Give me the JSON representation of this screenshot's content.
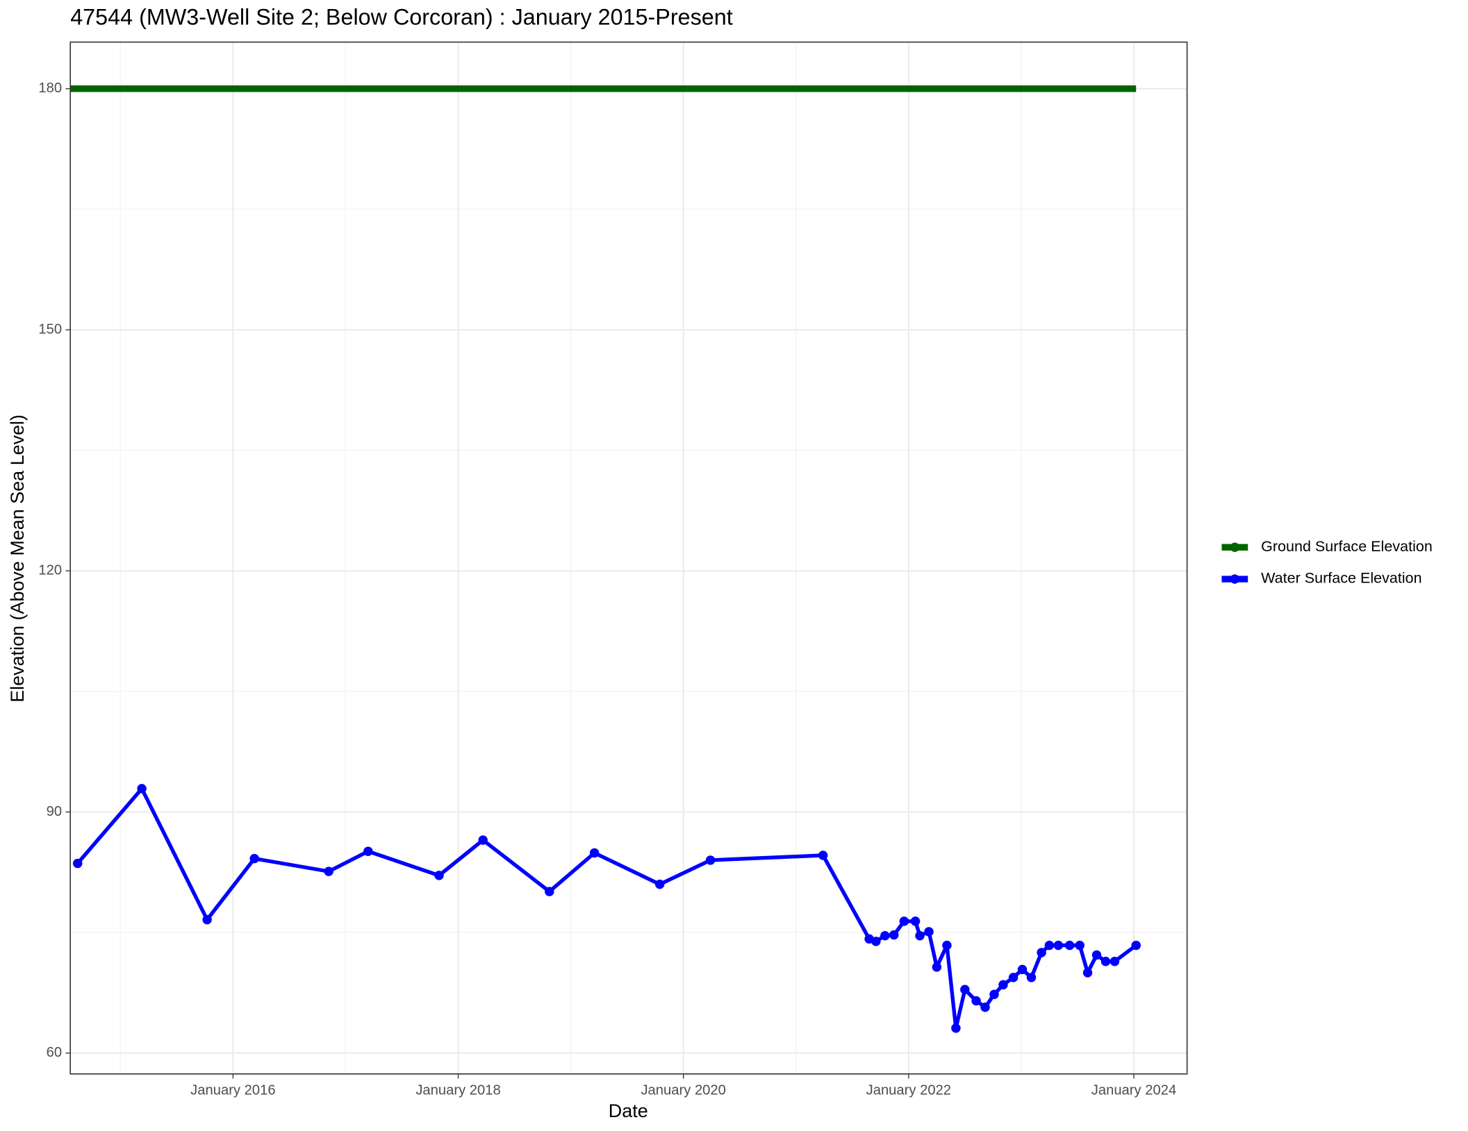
{
  "chart_data": {
    "type": "line",
    "title": "47544 (MW3-Well Site 2; Below Corcoran) : January 2015-Present",
    "x_label": "Date",
    "y_label": "Elevation (Above Mean Sea Level)",
    "xlim": [
      2014.555,
      2024.473
    ],
    "ylim": [
      57.4,
      185.8
    ],
    "xticks": [
      {
        "value": 2016,
        "label": "January 2016"
      },
      {
        "value": 2018,
        "label": "January 2018"
      },
      {
        "value": 2020,
        "label": "January 2020"
      },
      {
        "value": 2022,
        "label": "January 2022"
      },
      {
        "value": 2024,
        "label": "January 2024"
      }
    ],
    "yticks": [
      60,
      90,
      120,
      150,
      180
    ],
    "grid": true,
    "legend": "right",
    "series": [
      {
        "name": "Ground Surface Elevation",
        "color": "#006400",
        "markers": false,
        "x": [
          2014.555,
          2024.02
        ],
        "values": [
          180,
          180
        ]
      },
      {
        "name": "Water Surface Elevation",
        "color": "#0000ff",
        "markers": true,
        "x": [
          2014.62,
          2015.19,
          2015.77,
          2016.19,
          2016.85,
          2017.2,
          2017.83,
          2018.22,
          2018.81,
          2019.21,
          2019.79,
          2020.24,
          2021.24,
          2021.65,
          2021.71,
          2021.79,
          2021.87,
          2021.96,
          2022.06,
          2022.1,
          2022.18,
          2022.25,
          2022.34,
          2022.42,
          2022.5,
          2022.6,
          2022.68,
          2022.76,
          2022.84,
          2022.93,
          2023.01,
          2023.09,
          2023.18,
          2023.25,
          2023.33,
          2023.43,
          2023.52,
          2023.59,
          2023.67,
          2023.75,
          2023.83,
          2024.02
        ],
        "values": [
          83.6,
          92.9,
          76.6,
          84.2,
          82.6,
          85.1,
          82.1,
          86.5,
          80.1,
          84.9,
          81.0,
          84.0,
          84.6,
          74.2,
          73.9,
          74.6,
          74.7,
          76.4,
          76.4,
          74.6,
          75.1,
          70.7,
          73.4,
          63.1,
          67.9,
          66.5,
          65.7,
          67.3,
          68.5,
          69.4,
          70.4,
          69.4,
          72.5,
          73.4,
          73.4,
          73.4,
          73.4,
          70.0,
          72.2,
          71.4,
          71.4,
          73.4
        ]
      }
    ]
  }
}
